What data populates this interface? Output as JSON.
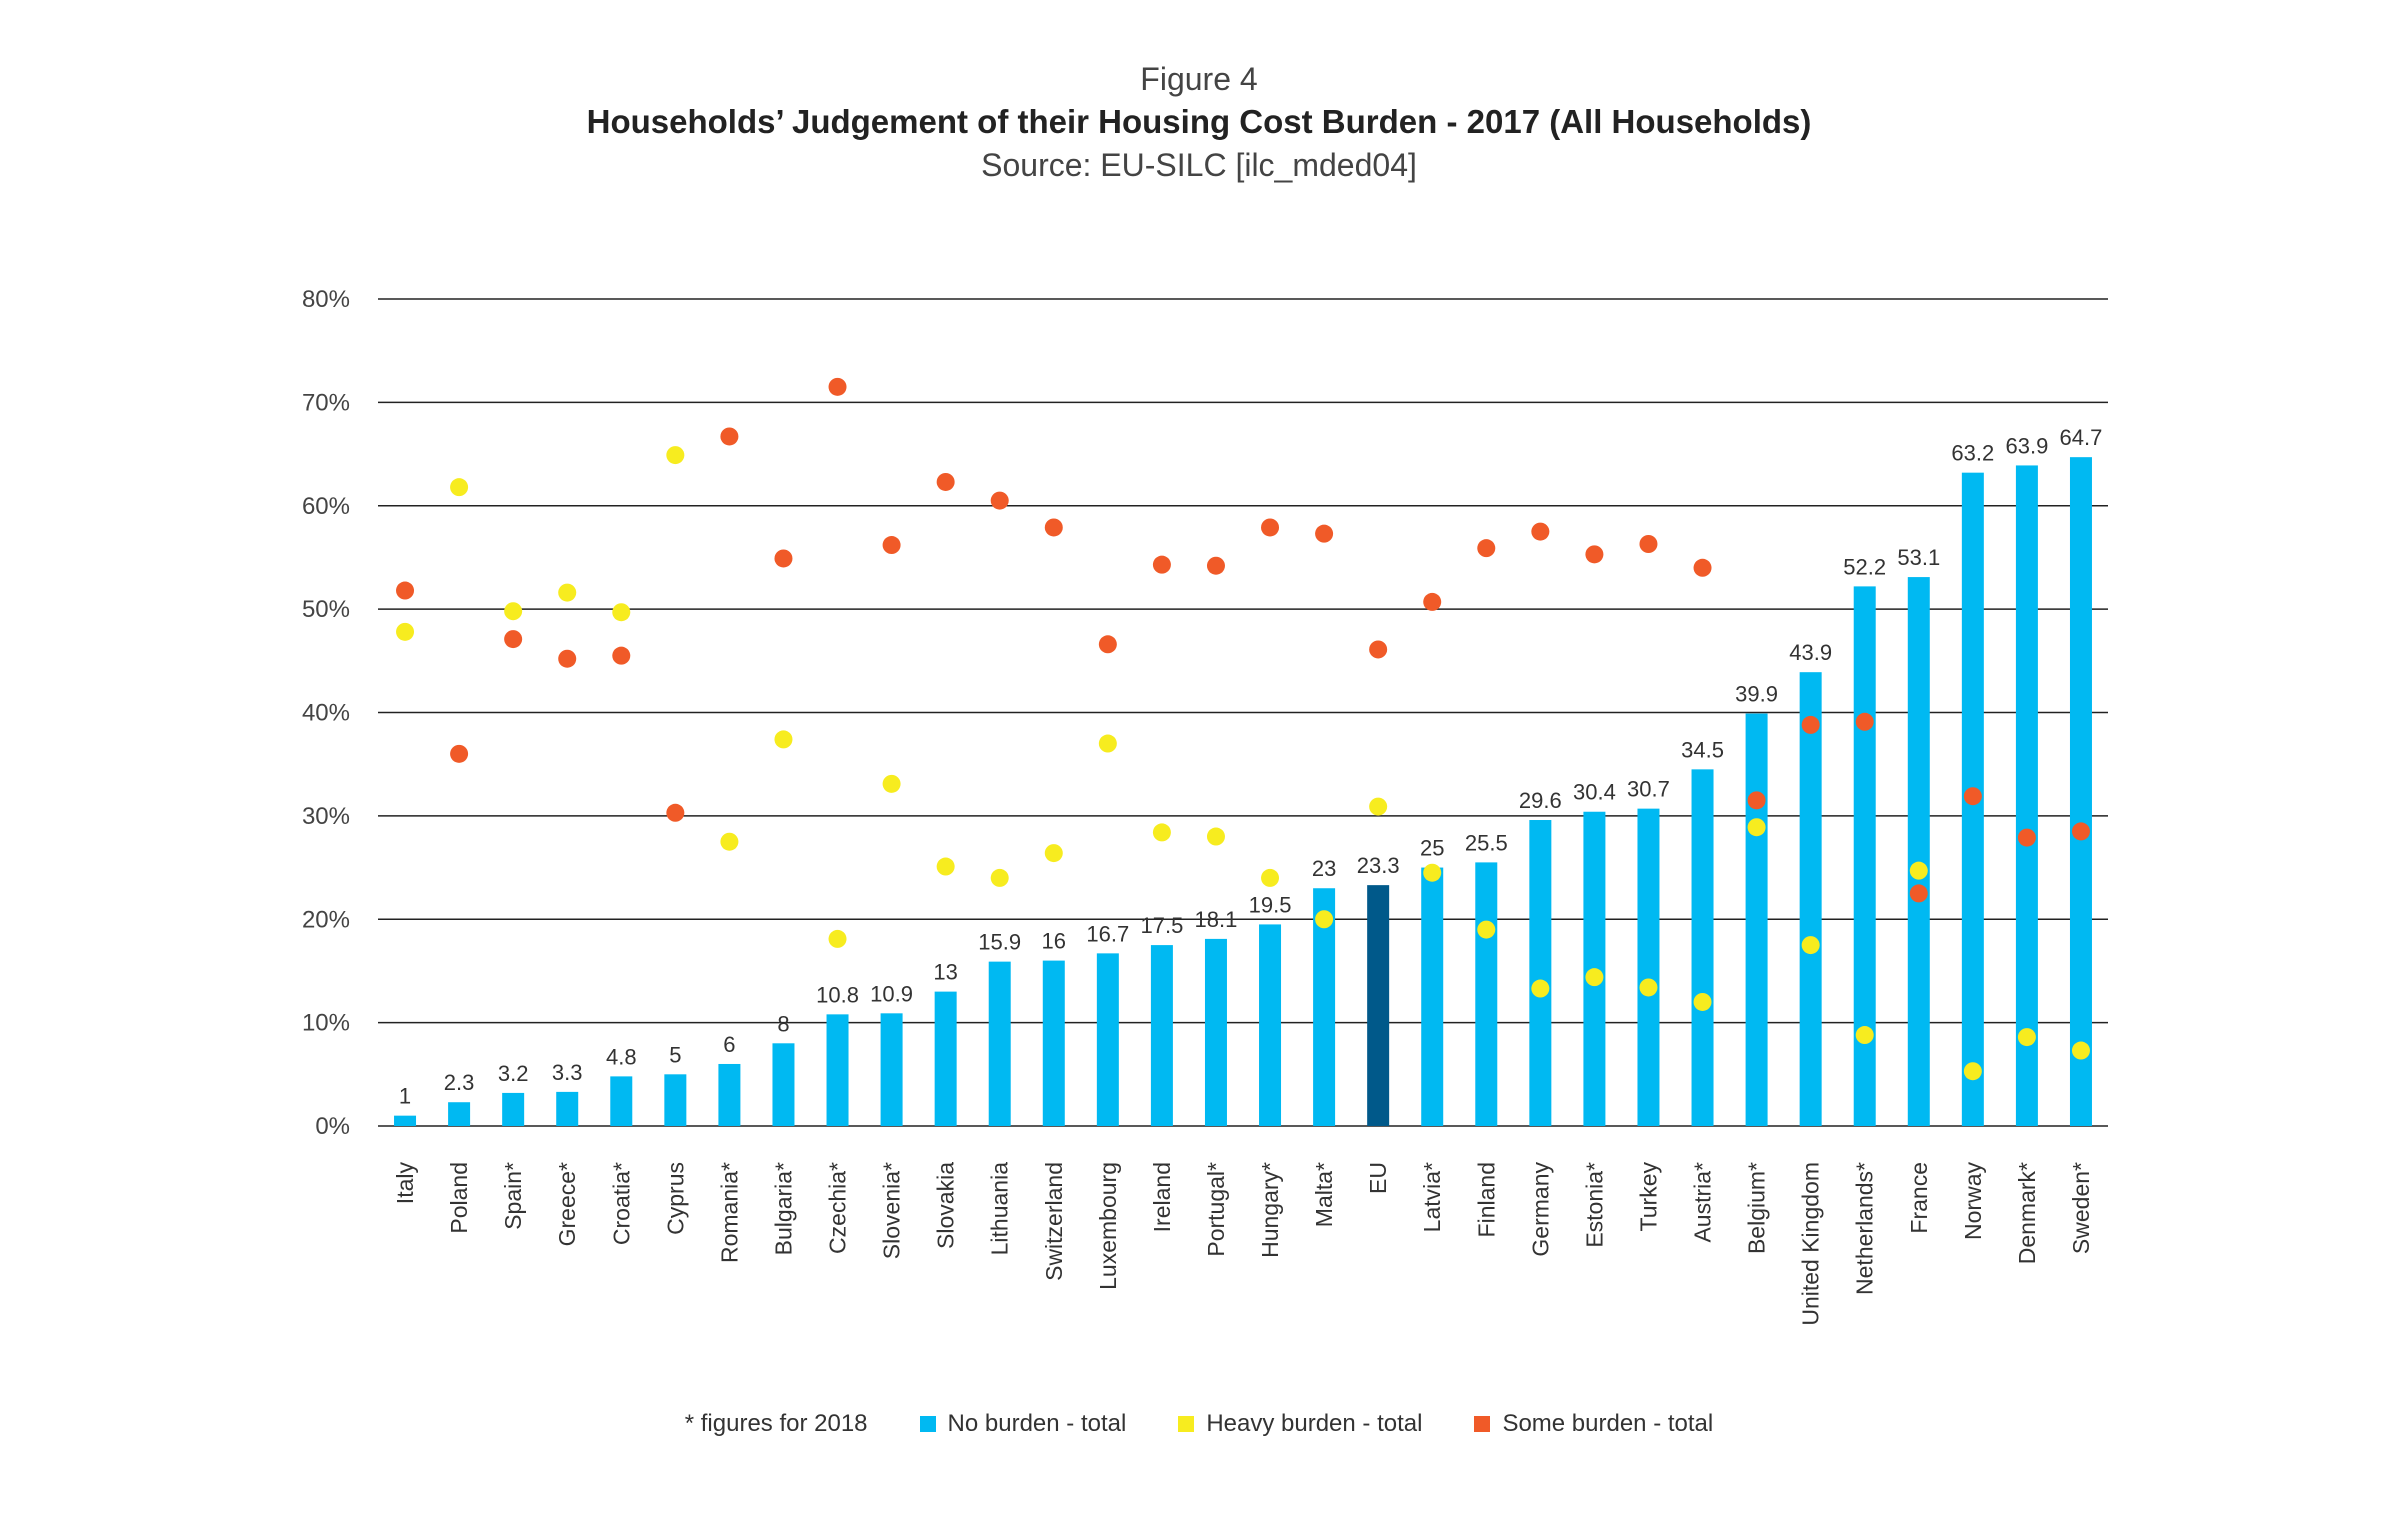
{
  "header": {
    "figure_label": "Figure 4",
    "title": "Households’ Judgement of their Housing Cost Burden - 2017 (All Households)",
    "source": "Source: EU-SILC [ilc_mded04]"
  },
  "legend": {
    "note": "* figures for 2018",
    "items": [
      {
        "label": "No burden - total",
        "color": "#00b9f2"
      },
      {
        "label": "Heavy burden - total",
        "color": "#f7ec1f"
      },
      {
        "label": "Some burden - total",
        "color": "#f05a28"
      }
    ]
  },
  "chart_data": {
    "type": "bar",
    "categories": [
      "Italy",
      "Poland",
      "Spain*",
      "Greece*",
      "Croatia*",
      "Cyprus",
      "Romania*",
      "Bulgaria*",
      "Czechia*",
      "Slovenia*",
      "Slovakia",
      "Lithuania",
      "Switzerland",
      "Luxembourg",
      "Ireland",
      "Portugal*",
      "Hungary*",
      "Malta*",
      "EU",
      "Latvia*",
      "Finland",
      "Germany",
      "Estonia*",
      "Turkey",
      "Austria*",
      "Belgium*",
      "United Kingdom",
      "Netherlands*",
      "France",
      "Norway",
      "Denmark*",
      "Sweden*"
    ],
    "series": [
      {
        "name": "No burden - total",
        "type": "bar",
        "color": "#00b9f2",
        "highlight_color": "#00598a",
        "highlight_category": "EU",
        "values": [
          1,
          2.3,
          3.2,
          3.3,
          4.8,
          5,
          6,
          8,
          10.8,
          10.9,
          13,
          15.9,
          16,
          16.7,
          17.5,
          18.1,
          19.5,
          23,
          23.3,
          25,
          25.5,
          29.6,
          30.4,
          30.7,
          34.5,
          39.9,
          43.9,
          52.2,
          53.1,
          63.2,
          63.9,
          64.7
        ],
        "labels": [
          "1",
          "2.3",
          "3.2",
          "3.3",
          "4.8",
          "5",
          "6",
          "8",
          "10.8",
          "10.9",
          "13",
          "15.9",
          "16",
          "16.7",
          "17.5",
          "18.1",
          "19.5",
          "23",
          "23.3",
          "25",
          "25.5",
          "29.6",
          "30.4",
          "30.7",
          "34.5",
          "39.9",
          "43.9",
          "52.2",
          "53.1",
          "63.2",
          "63.9",
          "64.7"
        ]
      },
      {
        "name": "Heavy burden - total",
        "type": "scatter",
        "color": "#f7ec1f",
        "values": [
          47.8,
          61.8,
          49.8,
          51.6,
          49.7,
          64.9,
          27.5,
          37.4,
          18.1,
          33.1,
          25.1,
          24,
          26.4,
          37,
          28.4,
          28,
          24,
          20,
          30.9,
          24.5,
          19,
          13.3,
          14.4,
          13.4,
          12,
          28.9,
          17.5,
          8.8,
          24.7,
          5.3,
          8.6,
          7.3
        ]
      },
      {
        "name": "Some burden - total",
        "type": "scatter",
        "color": "#f05a28",
        "values": [
          51.8,
          36,
          47.1,
          45.2,
          45.5,
          30.3,
          66.7,
          54.9,
          71.5,
          56.2,
          62.3,
          60.5,
          57.9,
          46.6,
          54.3,
          54.2,
          57.9,
          57.3,
          46.1,
          50.7,
          55.9,
          57.5,
          55.3,
          56.3,
          54,
          31.5,
          38.8,
          39.1,
          22.5,
          31.9,
          27.9,
          28.5
        ]
      }
    ],
    "y_ticks": [
      "0%",
      "10%",
      "20%",
      "30%",
      "40%",
      "50%",
      "60%",
      "70%",
      "80%"
    ],
    "ylim": [
      0,
      80
    ],
    "grid": true,
    "legend_position": "bottom"
  }
}
